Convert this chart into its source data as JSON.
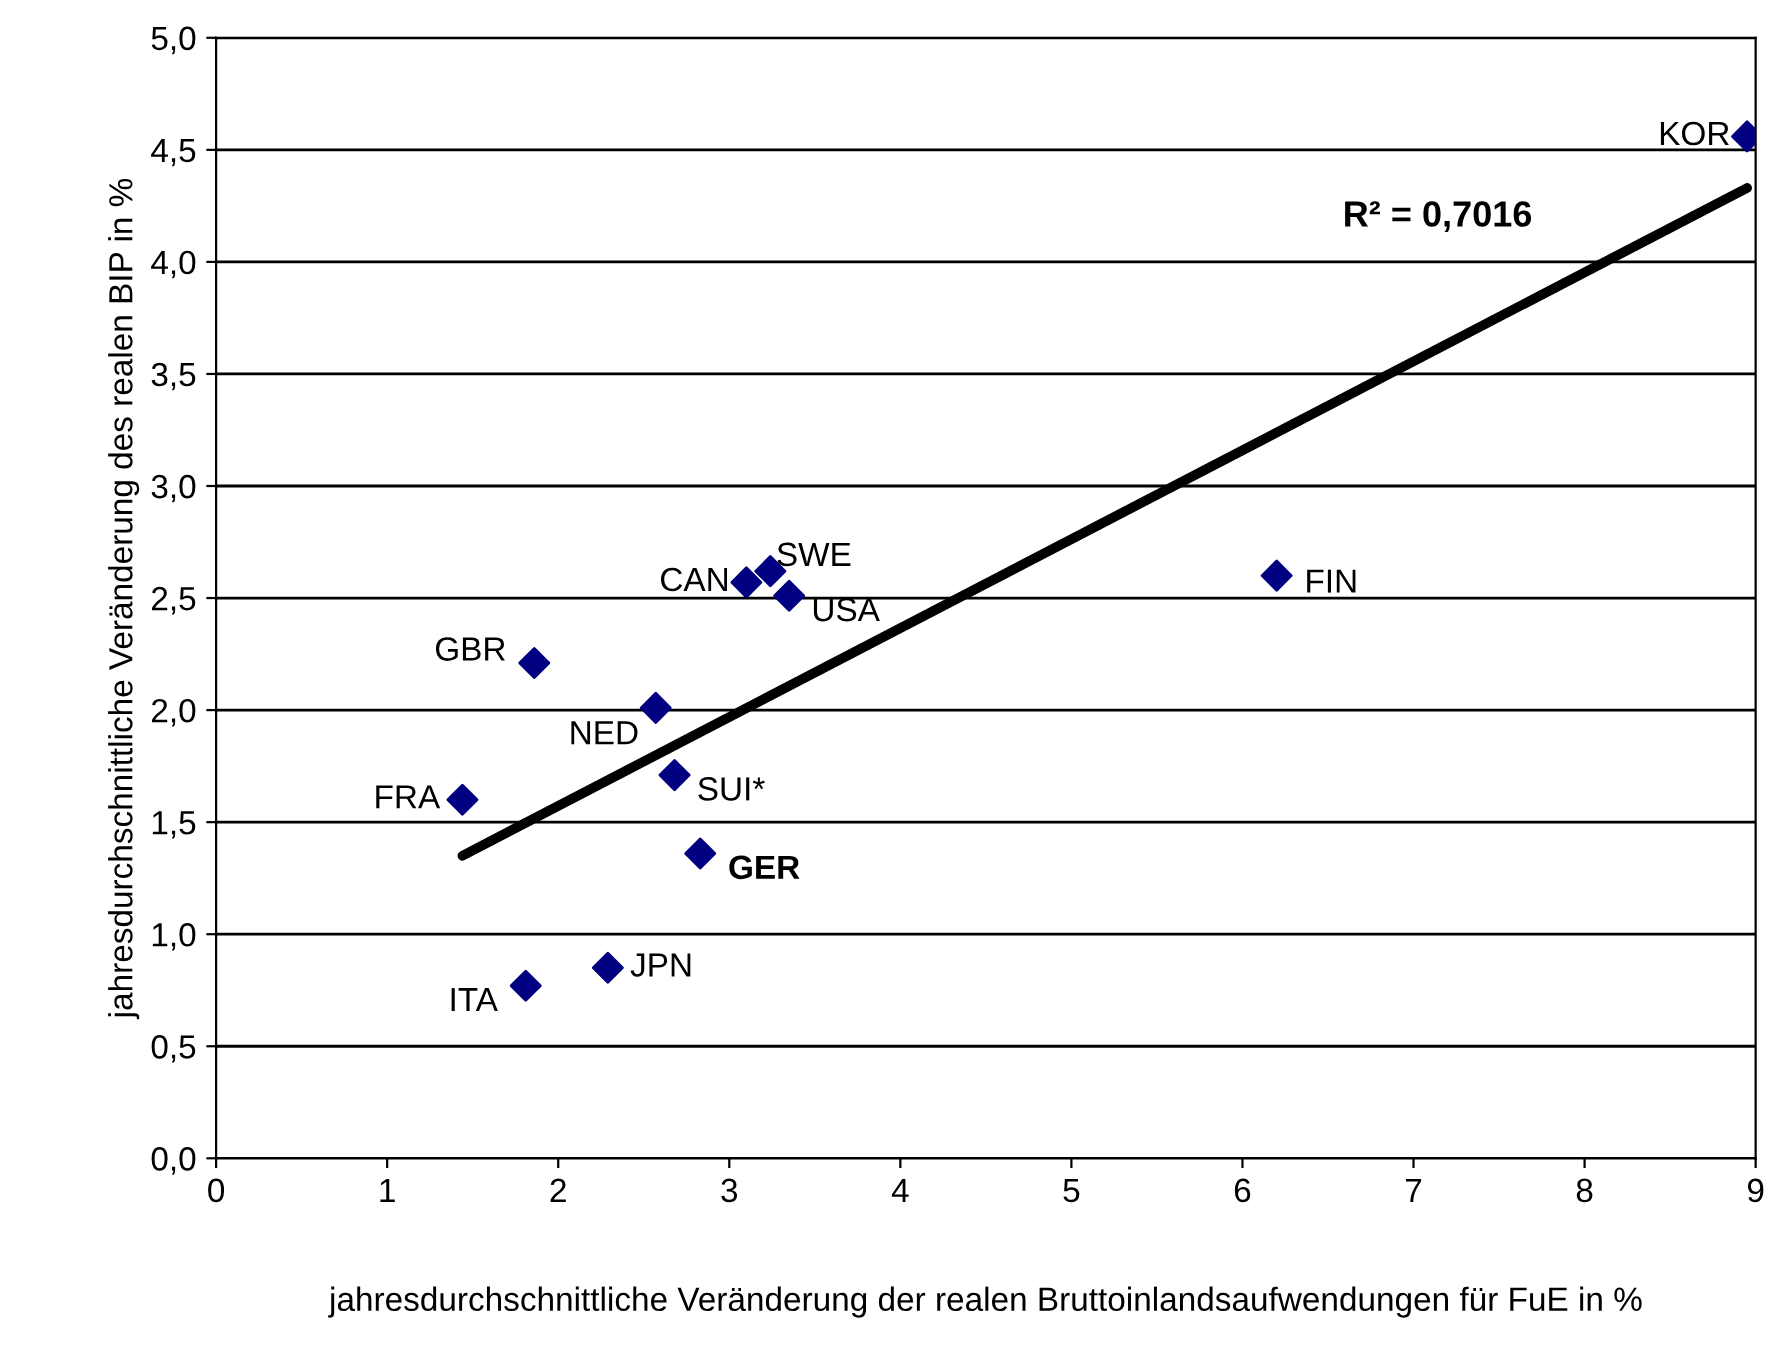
{
  "chart_data": {
    "type": "scatter",
    "xlabel": "jahresdurchschnittliche Veränderung der realen Bruttoinlandsaufwendungen für FuE in %",
    "ylabel": "jahresdurchschnittliche Veränderung des realen BIP in %",
    "series": [
      {
        "color": "#000080",
        "marker": "diamond",
        "x": [
          8.95,
          6.2,
          3.1,
          3.24,
          3.35,
          1.86,
          2.57,
          1.44,
          2.68,
          2.83,
          1.81,
          2.29
        ],
        "values": [
          4.56,
          2.6,
          2.57,
          2.62,
          2.51,
          2.21,
          2.01,
          1.6,
          1.71,
          1.36,
          0.77,
          0.85
        ],
        "value_labels": [
          "KOR",
          "FIN",
          "CAN",
          "SWE",
          "USA",
          "GBR",
          "NED",
          "FRA",
          "SUI*",
          "GER",
          "ITA",
          "JPN"
        ]
      },
      {
        "type": "line",
        "color": "#000000",
        "marker": "none",
        "line_style": "solid",
        "x": [
          1.44,
          8.95
        ],
        "values": [
          1.35,
          4.33
        ]
      }
    ],
    "annotations": [
      "R² = 0,7016"
    ],
    "xlim": [
      0,
      9
    ],
    "xticks": [
      0,
      1,
      2,
      3,
      4,
      5,
      6,
      7,
      8,
      9
    ],
    "ylim": [
      0,
      5
    ],
    "yticks": [
      {
        "value": 0,
        "label": "0,0"
      },
      {
        "value": 0.5,
        "label": "0,5"
      },
      {
        "value": 1,
        "label": "1,0"
      },
      {
        "value": 1.5,
        "label": "1,5"
      },
      {
        "value": 2,
        "label": "2,0"
      },
      {
        "value": 2.5,
        "label": "2,5"
      },
      {
        "value": 3,
        "label": "3,0"
      },
      {
        "value": 3.5,
        "label": "3,5"
      },
      {
        "value": 4,
        "label": "4,0"
      },
      {
        "value": 4.5,
        "label": "4,5"
      },
      {
        "value": 5,
        "label": "5,0"
      }
    ],
    "grid": "y",
    "legend": false
  }
}
